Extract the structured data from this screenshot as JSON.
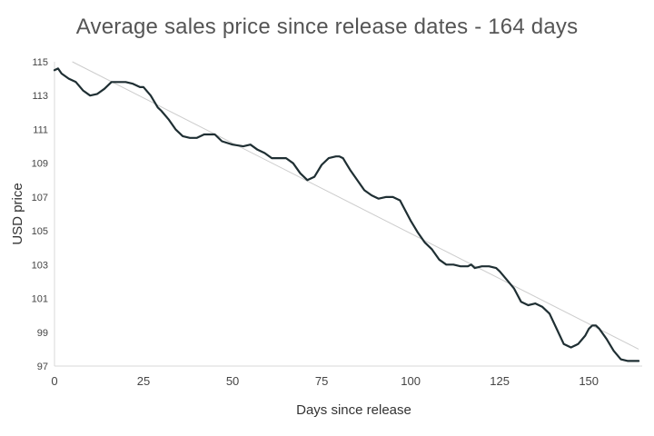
{
  "chart_data": {
    "type": "line",
    "title": "Average sales price since release dates - 164 days",
    "xlabel": "Days since release",
    "ylabel": "USD price",
    "xlim": [
      0,
      165
    ],
    "ylim": [
      97,
      115
    ],
    "xticks": [
      0,
      25,
      50,
      75,
      100,
      125,
      150
    ],
    "yticks": [
      97,
      99,
      101,
      103,
      105,
      107,
      109,
      111,
      113,
      115
    ],
    "grid": false,
    "legend": "none",
    "colors": {
      "series": "#1f2f33",
      "trend": "#cccccc"
    },
    "series": [
      {
        "type": "line",
        "x": [
          0,
          1,
          2,
          4,
          6,
          8,
          10,
          12,
          14,
          16,
          17,
          20,
          22,
          24,
          25,
          27,
          29,
          30,
          32,
          34,
          36,
          38,
          40,
          42,
          44,
          45,
          47,
          50,
          53,
          55,
          57,
          59,
          61,
          63,
          65,
          67,
          69,
          71,
          73,
          75,
          77,
          79,
          80,
          81,
          83,
          85,
          87,
          89,
          91,
          93,
          95,
          97,
          98,
          100,
          102,
          104,
          106,
          108,
          110,
          112,
          114,
          116,
          117,
          118,
          120,
          122,
          124,
          125,
          127,
          129,
          131,
          133,
          135,
          137,
          139,
          141,
          143,
          145,
          147,
          149,
          150,
          151,
          152,
          153,
          155,
          157,
          159,
          161,
          163,
          164
        ],
        "y": [
          114.5,
          114.6,
          114.3,
          114.0,
          113.8,
          113.3,
          113.0,
          113.1,
          113.4,
          113.8,
          113.8,
          113.8,
          113.7,
          113.5,
          113.5,
          113.0,
          112.3,
          112.1,
          111.6,
          111.0,
          110.6,
          110.5,
          110.5,
          110.7,
          110.7,
          110.7,
          110.3,
          110.1,
          110.0,
          110.1,
          109.8,
          109.6,
          109.3,
          109.3,
          109.3,
          109.0,
          108.4,
          108.0,
          108.2,
          108.9,
          109.3,
          109.4,
          109.4,
          109.3,
          108.6,
          108.0,
          107.4,
          107.1,
          106.9,
          107.0,
          107.0,
          106.8,
          106.4,
          105.6,
          104.9,
          104.3,
          103.9,
          103.3,
          103.0,
          103.0,
          102.9,
          102.9,
          103.0,
          102.8,
          102.9,
          102.9,
          102.8,
          102.6,
          102.1,
          101.6,
          100.8,
          100.6,
          100.7,
          100.5,
          100.1,
          99.2,
          98.3,
          98.1,
          98.3,
          98.8,
          99.2,
          99.4,
          99.4,
          99.2,
          98.6,
          97.9,
          97.4,
          97.3,
          97.3,
          97.3
        ]
      },
      {
        "type": "trendline",
        "x": [
          5,
          164
        ],
        "y": [
          115.0,
          98.0
        ]
      }
    ]
  }
}
